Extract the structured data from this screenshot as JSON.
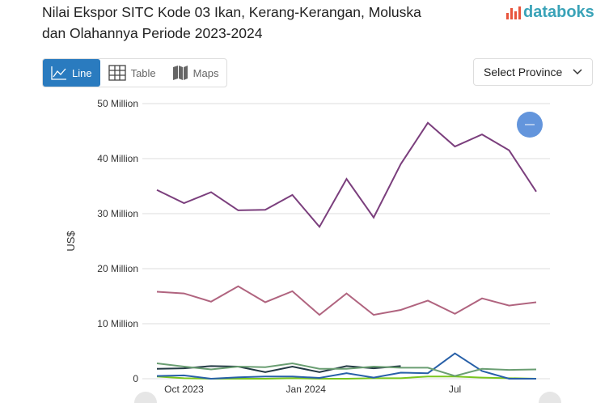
{
  "header": {
    "title": "Nilai Ekspor SITC Kode 03 Ikan, Kerang-Kerangan, Moluska dan Olahannya Periode 2023-2024",
    "logo": "databoks"
  },
  "tabs": [
    {
      "label": "Line",
      "icon": "line-chart-icon",
      "active": true
    },
    {
      "label": "Table",
      "icon": "table-icon"
    },
    {
      "label": "Maps",
      "icon": "map-icon"
    }
  ],
  "province_select": {
    "label": "Select Province"
  },
  "chart_data": {
    "type": "line",
    "title": "",
    "xlabel": "",
    "ylabel": "US$",
    "ylim": [
      0,
      50
    ],
    "y_ticks": [
      {
        "v": 0,
        "label": "0"
      },
      {
        "v": 10,
        "label": "10 Million"
      },
      {
        "v": 20,
        "label": "20 Million"
      },
      {
        "v": 30,
        "label": "30 Million"
      },
      {
        "v": 40,
        "label": "40 Million"
      },
      {
        "v": 50,
        "label": "50 Million"
      }
    ],
    "x_ticks": [
      {
        "i": 1,
        "label": "Oct 2023"
      },
      {
        "i": 5.5,
        "label": "Jan 2024"
      },
      {
        "i": 11,
        "label": "Jul"
      }
    ],
    "unit": "Million US$",
    "grid": true,
    "series": [
      {
        "color": "#7b3f7d",
        "values": [
          34.3,
          31.9,
          33.9,
          30.6,
          30.7,
          33.4,
          27.6,
          36.3,
          29.3,
          39.0,
          46.5,
          42.2,
          44.4,
          41.5,
          34.0
        ]
      },
      {
        "color": "#b0647f",
        "values": [
          15.8,
          15.5,
          14.0,
          16.8,
          13.9,
          15.9,
          11.6,
          15.5,
          11.6,
          12.5,
          14.2,
          11.8,
          14.6,
          13.3,
          13.9
        ]
      },
      {
        "color": "#6a9e72",
        "values": [
          2.8,
          2.2,
          1.7,
          2.2,
          2.1,
          2.8,
          1.8,
          1.8,
          2.2,
          2.0,
          2.0,
          0.5,
          1.8,
          1.6,
          1.7
        ]
      },
      {
        "color": "#243a45",
        "values": [
          1.8,
          1.9,
          2.3,
          2.2,
          1.2,
          2.2,
          1.2,
          2.3,
          1.9,
          2.3
        ]
      },
      {
        "color": "#2860a8",
        "values": [
          0.5,
          0.6,
          0,
          0.25,
          0.4,
          0.4,
          0.15,
          1.0,
          0.2,
          1.1,
          1.0,
          4.6,
          1.4,
          0,
          0
        ]
      },
      {
        "color": "#7ac61e",
        "values": [
          0.4,
          0.1,
          0,
          0,
          0,
          0.1,
          0,
          0,
          0.1,
          0.1,
          0.4,
          0.4,
          0.2,
          0.1,
          0
        ]
      }
    ]
  }
}
